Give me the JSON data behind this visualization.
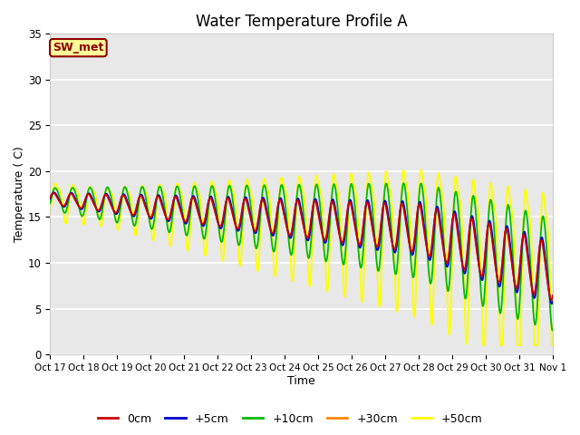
{
  "title": "Water Temperature Profile A",
  "xlabel": "Time",
  "ylabel": "Temperature (C)",
  "ylim": [
    0,
    35
  ],
  "xlim": [
    0,
    15
  ],
  "background_color": "#ffffff",
  "plot_bg_color": "#e8e8e8",
  "grid_color": "#ffffff",
  "annotation_text": "SW_met",
  "annotation_bg": "#ffff99",
  "annotation_border": "#8b0000",
  "annotation_text_color": "#8b0000",
  "series_colors": {
    "0cm": "#cc0000",
    "+5cm": "#0000cc",
    "+10cm": "#00bb00",
    "+30cm": "#ff8800",
    "+50cm": "#ffff00"
  },
  "legend_labels": [
    "0cm",
    "+5cm",
    "+10cm",
    "+30cm",
    "+50cm"
  ],
  "xtick_labels": [
    "Oct 17",
    "Oct 18",
    "Oct 19",
    "Oct 20",
    "Oct 21",
    "Oct 22",
    "Oct 23",
    "Oct 24",
    "Oct 25",
    "Oct 26",
    "Oct 27",
    "Oct 28",
    "Oct 29",
    "Oct 30",
    "Oct 31",
    "Nov 1"
  ],
  "ytick_values": [
    0,
    5,
    10,
    15,
    20,
    25,
    30,
    35
  ]
}
